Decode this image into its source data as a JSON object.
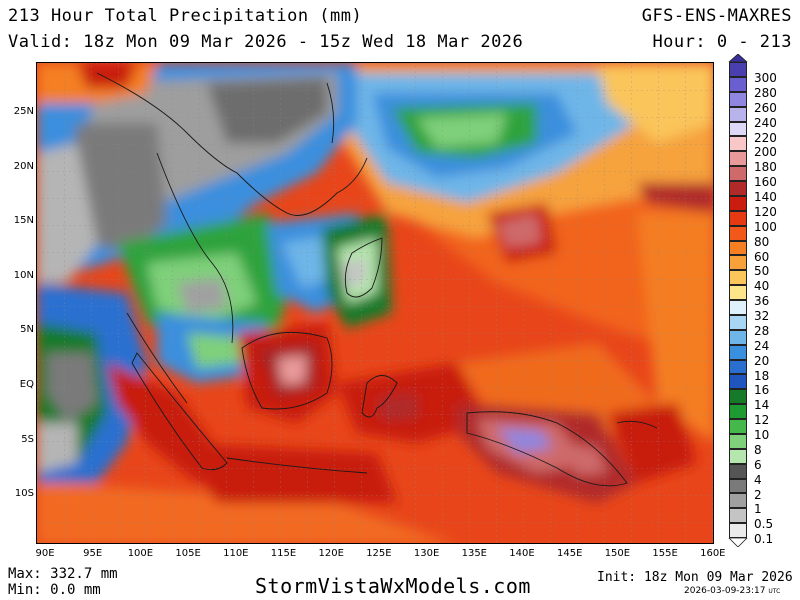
{
  "header": {
    "title": "213 Hour Total Precipitation (mm)",
    "model": "GFS-ENS-MAXRES",
    "valid": "Valid: 18z Mon 09 Mar 2026 - 15z Wed 18 Mar 2026",
    "hours": "Hour: 0 - 213"
  },
  "map": {
    "lat_labels": [
      "25N",
      "20N",
      "15N",
      "10N",
      "5N",
      "EQ",
      "5S",
      "10S"
    ],
    "lon_labels": [
      "90E",
      "95E",
      "100E",
      "105E",
      "110E",
      "115E",
      "120E",
      "125E",
      "130E",
      "135E",
      "140E",
      "145E",
      "150E",
      "155E",
      "160E"
    ]
  },
  "legend": {
    "labels": [
      "300",
      "280",
      "260",
      "240",
      "220",
      "200",
      "180",
      "160",
      "140",
      "120",
      "100",
      "80",
      "60",
      "50",
      "40",
      "36",
      "32",
      "28",
      "24",
      "20",
      "18",
      "16",
      "14",
      "12",
      "10",
      "8",
      "6",
      "4",
      "2",
      "1",
      "0.5",
      "0.1"
    ],
    "colors": [
      "#4a3fae",
      "#6a5fd0",
      "#8f86e0",
      "#b9b3ec",
      "#dcd8f6",
      "#f8c8c8",
      "#e89a9a",
      "#cf6a6a",
      "#b02a2a",
      "#c81d0f",
      "#e63a12",
      "#f2581a",
      "#f57f22",
      "#f8a03a",
      "#fac55a",
      "#fde58a",
      "#dff2fb",
      "#a9d6f2",
      "#6eb6e8",
      "#3a8fde",
      "#2a6fd0",
      "#1f55bd",
      "#157a2a",
      "#1e9a32",
      "#44b84a",
      "#7fd07a",
      "#b5e6ad",
      "#555555",
      "#7a7a7a",
      "#a0a0a0",
      "#c4c4c4",
      "#ebebeb"
    ]
  },
  "footer": {
    "max": "Max: 332.7 mm",
    "min": "Min: 0.0 mm",
    "site": "StormVistaWxModels.com",
    "init": "Init: 18z Mon 09 Mar 2026",
    "stamp": "2026-03-09-23:17",
    "stamp_tz": "UTC"
  }
}
